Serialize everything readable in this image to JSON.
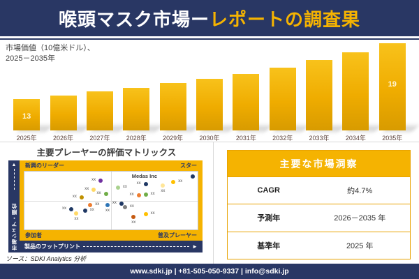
{
  "header": {
    "title_white": "喉頭マスク市場ー",
    "title_gold": "レポートの調査果"
  },
  "chart": {
    "subtitle_line1": "市場価値（10億米ドル）、",
    "subtitle_line2": "2025－2035年"
  },
  "chart_data": [
    {
      "type": "bar",
      "title": "市場価値（10億米ドル）、2025－2035年",
      "xlabel": "",
      "ylabel": "市場価値（10億米ドル）",
      "categories": [
        "2025年",
        "2026年",
        "2027年",
        "2028年",
        "2029年",
        "2030年",
        "2031年",
        "2032年",
        "2033年",
        "2034年",
        "2035年"
      ],
      "values": [
        13,
        13.4,
        13.8,
        14.2,
        14.7,
        15.2,
        15.7,
        16.4,
        17.2,
        18,
        19
      ],
      "data_labels": [
        "13",
        null,
        null,
        null,
        null,
        null,
        null,
        null,
        null,
        null,
        "19"
      ],
      "ylim": [
        12,
        20
      ],
      "grid": false,
      "legend": false,
      "bar_color_top": "#F8C21B",
      "bar_color_bottom": "#D89B00",
      "label_color": "#FFF6D8"
    },
    {
      "type": "scatter",
      "title": "主要プレーヤーの評価マトリックス",
      "xlabel": "製品のフットプリント",
      "ylabel": "市場シェア・順位",
      "quadrants": {
        "top_left": "新興のリーダー",
        "top_right": "スター",
        "bottom_left": "参加者",
        "bottom_right": "普及プレーヤー"
      },
      "highlight_company": "Medas Inc",
      "axis_range": [
        0,
        100
      ],
      "points": [
        {
          "x": 44,
          "y": 16,
          "color": "#7030A0",
          "label": "xx",
          "label_pos": "left"
        },
        {
          "x": 40,
          "y": 31,
          "color": "#FFD966",
          "label": "xx",
          "label_pos": "left"
        },
        {
          "x": 47,
          "y": 39,
          "color": "#70AD47",
          "label": "xx",
          "label_pos": "left"
        },
        {
          "x": 33,
          "y": 44,
          "color": "#BF9000",
          "label": "xx",
          "label_pos": "left"
        },
        {
          "x": 97,
          "y": 8,
          "color": "#1F3864",
          "label": "",
          "label_pos": "none"
        },
        {
          "x": 86,
          "y": 18,
          "color": "#FFC000",
          "label": "xx",
          "label_pos": "right"
        },
        {
          "x": 80,
          "y": 24,
          "color": "#FFE699",
          "label": "xx",
          "label_pos": "bottom"
        },
        {
          "x": 70,
          "y": 22,
          "color": "#1F3864",
          "label": "xx",
          "label_pos": "left"
        },
        {
          "x": 54,
          "y": 28,
          "color": "#A9D18E",
          "label": "xx",
          "label_pos": "right"
        },
        {
          "x": 66,
          "y": 41,
          "color": "#ED7D31",
          "label": "xx",
          "label_pos": "left"
        },
        {
          "x": 70,
          "y": 40,
          "color": "#70AD47",
          "label": "xx",
          "label_pos": "right"
        },
        {
          "x": 38,
          "y": 58,
          "color": "#ED7D31",
          "label": "xx",
          "label_pos": "right"
        },
        {
          "x": 48,
          "y": 58,
          "color": "#2E75B6",
          "label": "xx",
          "label_pos": "bottom"
        },
        {
          "x": 27,
          "y": 65,
          "color": "#1F3864",
          "label": "xx",
          "label_pos": "left"
        },
        {
          "x": 35,
          "y": 67,
          "color": "#1F3864",
          "label": "xx",
          "label_pos": "right"
        },
        {
          "x": 30,
          "y": 72,
          "color": "#FFD966",
          "label": "xx",
          "label_pos": "bottom"
        },
        {
          "x": 56,
          "y": 56,
          "color": "#1F3864",
          "label": "xx",
          "label_pos": "left"
        },
        {
          "x": 58,
          "y": 61,
          "color": "#7F7F7F",
          "label": "xx",
          "label_pos": "right"
        },
        {
          "x": 63,
          "y": 78,
          "color": "#C55A11",
          "label": "xx",
          "label_pos": "bottom"
        },
        {
          "x": 70,
          "y": 74,
          "color": "#FFC000",
          "label": "xx",
          "label_pos": "right"
        }
      ]
    }
  ],
  "matrix": {
    "title": "主要プレーヤーの評価マトリックス"
  },
  "insights": {
    "title": "主要な市場洞察",
    "rows": [
      {
        "label": "CAGR",
        "value": "約4.7%"
      },
      {
        "label": "予測年",
        "value": "2026－2035 年"
      },
      {
        "label": "基準年",
        "value": "2025 年"
      }
    ]
  },
  "source": "ソース：SDKI Analytics 分析",
  "footer": "www.sdki.jp | +81-505-050-9337 | info@sdki.jp",
  "colors": {
    "navy": "#293764",
    "gold": "#F5B301",
    "bar_gold": "#EFAC00",
    "year_label": "#5a4038"
  }
}
